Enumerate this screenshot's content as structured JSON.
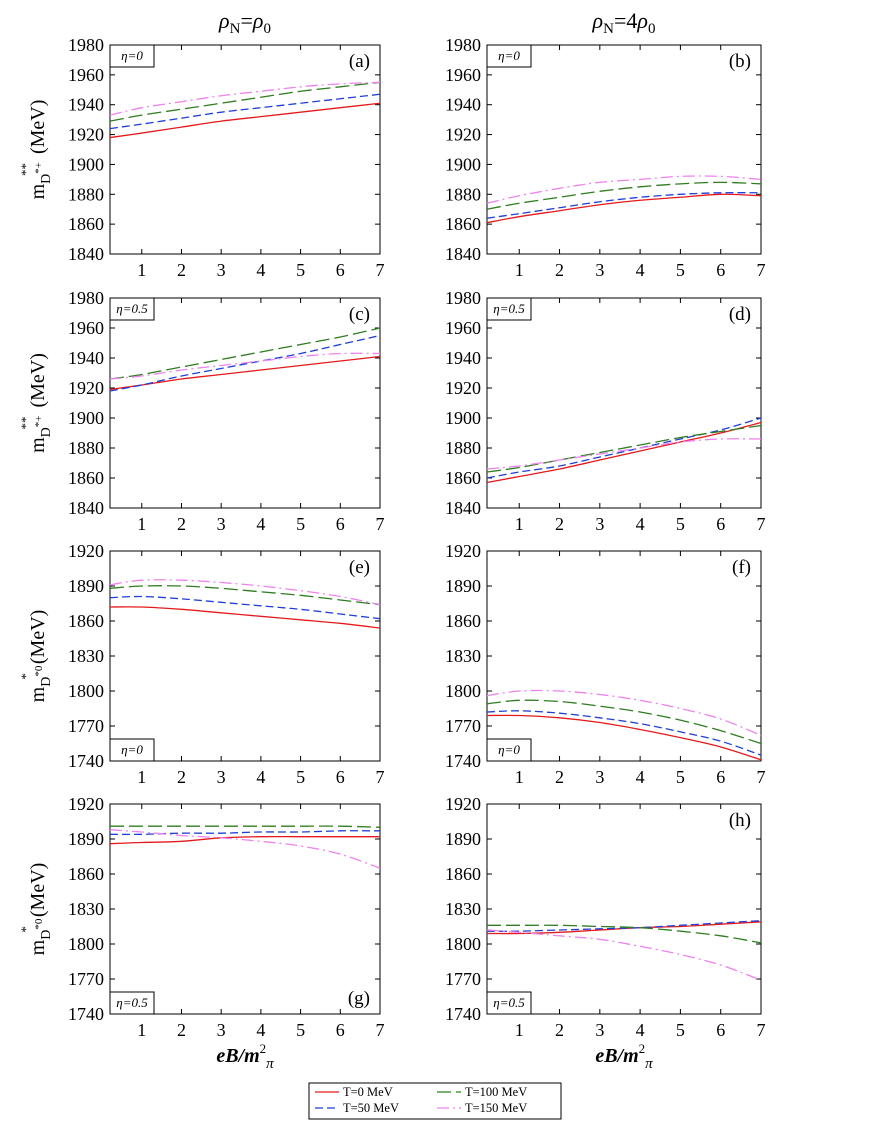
{
  "column_headers": {
    "left": {
      "rho": "ρ",
      "sub1": "N",
      "eq": "=",
      "rho2": "ρ",
      "sub2": "0"
    },
    "right": {
      "rho": "ρ",
      "sub1": "N",
      "eq": "=4",
      "rho2": "ρ",
      "sub2": "0"
    }
  },
  "xlabel": {
    "main": "eB/m",
    "sup": "2",
    "sub": "π"
  },
  "ylabels": {
    "charged": {
      "m": "m",
      "sub": "D",
      "subsup": "*+",
      "sup": "**",
      "unit": "(MeV)"
    },
    "neutral": {
      "m": "m",
      "sub": "D",
      "subsup": "*0",
      "sup": "*",
      "unit": "(MeV)"
    }
  },
  "colors": {
    "T0": "#e41a1c",
    "T50": "#1f3fd6",
    "T100": "#2e7d1f",
    "T150": "#ee82ee"
  },
  "legend": [
    {
      "key": "T0",
      "label": "T=0 MeV",
      "dash": "solid"
    },
    {
      "key": "T100",
      "label": "T=100 MeV",
      "dash": "long-dash"
    },
    {
      "key": "T50",
      "label": "T=50 MeV",
      "dash": "dash"
    },
    {
      "key": "T150",
      "label": "T=150 MeV",
      "dash": "dash-dot"
    }
  ],
  "chart_data": [
    {
      "type": "line",
      "panel": "(a)",
      "eta": "η=0",
      "xticks": [
        1,
        2,
        3,
        4,
        5,
        6,
        7
      ],
      "yticks": [
        1840,
        1860,
        1880,
        1900,
        1920,
        1940,
        1960,
        1980
      ],
      "xlim": [
        0.2,
        7
      ],
      "ylim": [
        1840,
        1980
      ],
      "x": [
        0.2,
        1,
        2,
        3,
        4,
        5,
        6,
        7
      ],
      "series": [
        {
          "name": "T=0 MeV",
          "key": "T0",
          "values": [
            1918,
            1921,
            1925,
            1929,
            1932,
            1935,
            1938,
            1941
          ]
        },
        {
          "name": "T=50 MeV",
          "key": "T50",
          "values": [
            1924,
            1927,
            1931,
            1935,
            1938,
            1941,
            1944,
            1947
          ]
        },
        {
          "name": "T=100 MeV",
          "key": "T100",
          "values": [
            1929,
            1933,
            1937,
            1941,
            1945,
            1949,
            1952,
            1955
          ]
        },
        {
          "name": "T=150 MeV",
          "key": "T150",
          "values": [
            1933,
            1938,
            1942,
            1946,
            1949,
            1952,
            1954,
            1955
          ]
        }
      ]
    },
    {
      "type": "line",
      "panel": "(b)",
      "eta": "η=0",
      "xticks": [
        1,
        2,
        3,
        4,
        5,
        6,
        7
      ],
      "yticks": [
        1840,
        1860,
        1880,
        1900,
        1920,
        1940,
        1960,
        1980
      ],
      "xlim": [
        0.2,
        7
      ],
      "ylim": [
        1840,
        1980
      ],
      "x": [
        0.2,
        1,
        2,
        3,
        4,
        5,
        6,
        7
      ],
      "series": [
        {
          "name": "T=0 MeV",
          "key": "T0",
          "values": [
            1861,
            1865,
            1869,
            1873,
            1876,
            1878,
            1880,
            1879
          ]
        },
        {
          "name": "T=50 MeV",
          "key": "T50",
          "values": [
            1864,
            1867,
            1871,
            1875,
            1878,
            1880,
            1881,
            1881
          ]
        },
        {
          "name": "T=100 MeV",
          "key": "T100",
          "values": [
            1870,
            1874,
            1878,
            1882,
            1885,
            1887,
            1888,
            1887
          ]
        },
        {
          "name": "T=150 MeV",
          "key": "T150",
          "values": [
            1874,
            1879,
            1884,
            1888,
            1890,
            1892,
            1892,
            1890
          ]
        }
      ]
    },
    {
      "type": "line",
      "panel": "(c)",
      "eta": "η=0.5",
      "xticks": [
        1,
        2,
        3,
        4,
        5,
        6,
        7
      ],
      "yticks": [
        1840,
        1860,
        1880,
        1900,
        1920,
        1940,
        1960,
        1980
      ],
      "xlim": [
        0.2,
        7
      ],
      "ylim": [
        1840,
        1980
      ],
      "x": [
        0.2,
        1,
        2,
        3,
        4,
        5,
        6,
        7
      ],
      "series": [
        {
          "name": "T=0 MeV",
          "key": "T0",
          "values": [
            1919,
            1922,
            1926,
            1929,
            1932,
            1935,
            1938,
            1941
          ]
        },
        {
          "name": "T=50 MeV",
          "key": "T50",
          "values": [
            1918,
            1922,
            1928,
            1933,
            1938,
            1943,
            1949,
            1955
          ]
        },
        {
          "name": "T=100 MeV",
          "key": "T100",
          "values": [
            1926,
            1929,
            1934,
            1939,
            1944,
            1949,
            1954,
            1960
          ]
        },
        {
          "name": "T=150 MeV",
          "key": "T150",
          "values": [
            1926,
            1928,
            1932,
            1935,
            1938,
            1941,
            1943,
            1943
          ]
        }
      ]
    },
    {
      "type": "line",
      "panel": "(d)",
      "eta": "η=0.5",
      "xticks": [
        1,
        2,
        3,
        4,
        5,
        6,
        7
      ],
      "yticks": [
        1840,
        1860,
        1880,
        1900,
        1920,
        1940,
        1960,
        1980
      ],
      "xlim": [
        0.2,
        7
      ],
      "ylim": [
        1840,
        1980
      ],
      "x": [
        0.2,
        1,
        2,
        3,
        4,
        5,
        6,
        7
      ],
      "series": [
        {
          "name": "T=0 MeV",
          "key": "T0",
          "values": [
            1857,
            1861,
            1866,
            1872,
            1878,
            1884,
            1890,
            1897
          ]
        },
        {
          "name": "T=50 MeV",
          "key": "T50",
          "values": [
            1860,
            1864,
            1868,
            1874,
            1880,
            1886,
            1892,
            1900
          ]
        },
        {
          "name": "T=100 MeV",
          "key": "T100",
          "values": [
            1864,
            1867,
            1872,
            1877,
            1882,
            1887,
            1891,
            1895
          ]
        },
        {
          "name": "T=150 MeV",
          "key": "T150",
          "values": [
            1866,
            1868,
            1872,
            1876,
            1880,
            1884,
            1886,
            1886
          ]
        }
      ]
    },
    {
      "type": "line",
      "panel": "(e)",
      "eta": "η=0",
      "xticks": [
        1,
        2,
        3,
        4,
        5,
        6,
        7
      ],
      "yticks": [
        1740,
        1770,
        1800,
        1830,
        1860,
        1890,
        1920
      ],
      "xlim": [
        0.2,
        7
      ],
      "ylim": [
        1740,
        1920
      ],
      "x": [
        0.2,
        1,
        2,
        3,
        4,
        5,
        6,
        7
      ],
      "series": [
        {
          "name": "T=0 MeV",
          "key": "T0",
          "values": [
            1872,
            1872,
            1870,
            1867,
            1864,
            1861,
            1858,
            1854
          ]
        },
        {
          "name": "T=50 MeV",
          "key": "T50",
          "values": [
            1880,
            1881,
            1879,
            1876,
            1873,
            1870,
            1866,
            1862
          ]
        },
        {
          "name": "T=100 MeV",
          "key": "T100",
          "values": [
            1888,
            1890,
            1890,
            1888,
            1885,
            1882,
            1878,
            1874
          ]
        },
        {
          "name": "T=150 MeV",
          "key": "T150",
          "values": [
            1891,
            1895,
            1895,
            1893,
            1890,
            1886,
            1881,
            1874
          ]
        }
      ]
    },
    {
      "type": "line",
      "panel": "(f)",
      "eta": "η=0",
      "xticks": [
        1,
        2,
        3,
        4,
        5,
        6,
        7
      ],
      "yticks": [
        1740,
        1770,
        1800,
        1830,
        1860,
        1890,
        1920
      ],
      "xlim": [
        0.2,
        7
      ],
      "ylim": [
        1740,
        1920
      ],
      "x": [
        0.2,
        1,
        2,
        3,
        4,
        5,
        6,
        7
      ],
      "series": [
        {
          "name": "T=0 MeV",
          "key": "T0",
          "values": [
            1779,
            1779,
            1777,
            1773,
            1767,
            1760,
            1752,
            1741
          ]
        },
        {
          "name": "T=50 MeV",
          "key": "T50",
          "values": [
            1782,
            1783,
            1781,
            1777,
            1772,
            1765,
            1757,
            1745
          ]
        },
        {
          "name": "T=100 MeV",
          "key": "T100",
          "values": [
            1789,
            1792,
            1791,
            1787,
            1782,
            1775,
            1766,
            1755
          ]
        },
        {
          "name": "T=150 MeV",
          "key": "T150",
          "values": [
            1796,
            1800,
            1800,
            1797,
            1792,
            1785,
            1776,
            1762
          ]
        }
      ]
    },
    {
      "type": "line",
      "panel": "(g)",
      "eta": "η=0.5",
      "xticks": [
        1,
        2,
        3,
        4,
        5,
        6,
        7
      ],
      "yticks": [
        1740,
        1770,
        1800,
        1830,
        1860,
        1890,
        1920
      ],
      "xlim": [
        0.2,
        7
      ],
      "ylim": [
        1740,
        1920
      ],
      "x": [
        0.2,
        1,
        2,
        3,
        4,
        5,
        6,
        7
      ],
      "series": [
        {
          "name": "T=0 MeV",
          "key": "T0",
          "values": [
            1886,
            1887,
            1888,
            1891,
            1892,
            1892,
            1892,
            1892
          ]
        },
        {
          "name": "T=50 MeV",
          "key": "T50",
          "values": [
            1894,
            1894,
            1895,
            1895,
            1896,
            1896,
            1897,
            1897
          ]
        },
        {
          "name": "T=100 MeV",
          "key": "T100",
          "values": [
            1901,
            1901,
            1901,
            1901,
            1901,
            1901,
            1901,
            1900
          ]
        },
        {
          "name": "T=150 MeV",
          "key": "T150",
          "values": [
            1898,
            1896,
            1893,
            1891,
            1888,
            1884,
            1877,
            1865
          ]
        }
      ]
    },
    {
      "type": "line",
      "panel": "(h)",
      "eta": "η=0.5",
      "xticks": [
        1,
        2,
        3,
        4,
        5,
        6,
        7
      ],
      "yticks": [
        1740,
        1770,
        1800,
        1830,
        1860,
        1890,
        1920
      ],
      "xlim": [
        0.2,
        7
      ],
      "ylim": [
        1740,
        1920
      ],
      "x": [
        0.2,
        1,
        2,
        3,
        4,
        5,
        6,
        7
      ],
      "series": [
        {
          "name": "T=0 MeV",
          "key": "T0",
          "values": [
            1809,
            1809,
            1810,
            1812,
            1814,
            1815,
            1817,
            1819
          ]
        },
        {
          "name": "T=50 MeV",
          "key": "T50",
          "values": [
            1811,
            1811,
            1812,
            1813,
            1814,
            1816,
            1818,
            1820
          ]
        },
        {
          "name": "T=100 MeV",
          "key": "T100",
          "values": [
            1816,
            1816,
            1816,
            1815,
            1814,
            1811,
            1807,
            1801
          ]
        },
        {
          "name": "T=150 MeV",
          "key": "T150",
          "values": [
            1812,
            1810,
            1807,
            1804,
            1798,
            1791,
            1782,
            1769
          ]
        }
      ]
    }
  ]
}
